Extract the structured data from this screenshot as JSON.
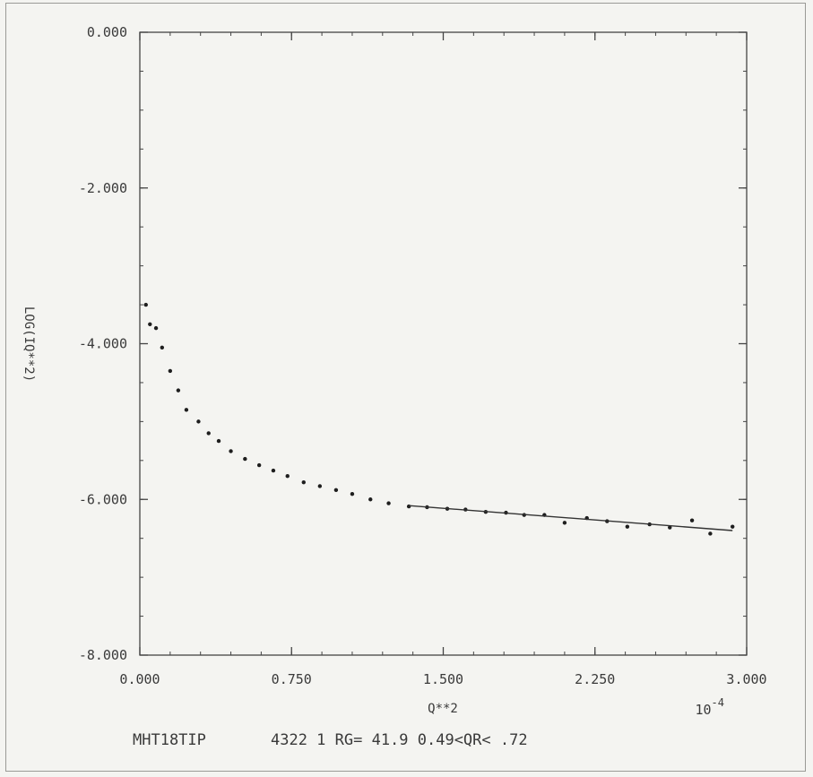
{
  "chart_data": {
    "type": "scatter",
    "title": "",
    "xlabel": "Q**2",
    "ylabel": "LOG(IQ**2)",
    "x_multiplier": "10",
    "x_multiplier_exp": "-4",
    "xlim": [
      0.0,
      3.0
    ],
    "ylim": [
      -8.0,
      0.0
    ],
    "x_ticks": [
      "0.000",
      "0.750",
      "1.500",
      "2.250",
      "3.000"
    ],
    "y_ticks": [
      "0.000",
      "-2.000",
      "-4.000",
      "-6.000",
      "-8.000"
    ],
    "grid": false,
    "points": [
      {
        "x": 0.03,
        "y": -3.5
      },
      {
        "x": 0.05,
        "y": -3.75
      },
      {
        "x": 0.08,
        "y": -3.8
      },
      {
        "x": 0.11,
        "y": -4.05
      },
      {
        "x": 0.15,
        "y": -4.35
      },
      {
        "x": 0.19,
        "y": -4.6
      },
      {
        "x": 0.23,
        "y": -4.85
      },
      {
        "x": 0.29,
        "y": -5.0
      },
      {
        "x": 0.34,
        "y": -5.15
      },
      {
        "x": 0.39,
        "y": -5.25
      },
      {
        "x": 0.45,
        "y": -5.38
      },
      {
        "x": 0.52,
        "y": -5.48
      },
      {
        "x": 0.59,
        "y": -5.56
      },
      {
        "x": 0.66,
        "y": -5.63
      },
      {
        "x": 0.73,
        "y": -5.7
      },
      {
        "x": 0.81,
        "y": -5.78
      },
      {
        "x": 0.89,
        "y": -5.83
      },
      {
        "x": 0.97,
        "y": -5.88
      },
      {
        "x": 1.05,
        "y": -5.93
      },
      {
        "x": 1.14,
        "y": -6.0
      },
      {
        "x": 1.23,
        "y": -6.05
      },
      {
        "x": 1.33,
        "y": -6.09
      },
      {
        "x": 1.42,
        "y": -6.1
      },
      {
        "x": 1.52,
        "y": -6.12
      },
      {
        "x": 1.61,
        "y": -6.13
      },
      {
        "x": 1.71,
        "y": -6.16
      },
      {
        "x": 1.81,
        "y": -6.17
      },
      {
        "x": 1.9,
        "y": -6.2
      },
      {
        "x": 2.0,
        "y": -6.2
      },
      {
        "x": 2.1,
        "y": -6.3
      },
      {
        "x": 2.21,
        "y": -6.24
      },
      {
        "x": 2.31,
        "y": -6.28
      },
      {
        "x": 2.41,
        "y": -6.35
      },
      {
        "x": 2.52,
        "y": -6.32
      },
      {
        "x": 2.62,
        "y": -6.36
      },
      {
        "x": 2.73,
        "y": -6.27
      },
      {
        "x": 2.82,
        "y": -6.44
      },
      {
        "x": 2.93,
        "y": -6.35
      }
    ],
    "fit_line": {
      "x": [
        1.33,
        2.93
      ],
      "y": [
        -6.08,
        -6.4
      ]
    }
  },
  "caption": {
    "sample": "MHT18TIP",
    "details": "4322 1 RG= 41.9 0.49<QR< .72"
  }
}
